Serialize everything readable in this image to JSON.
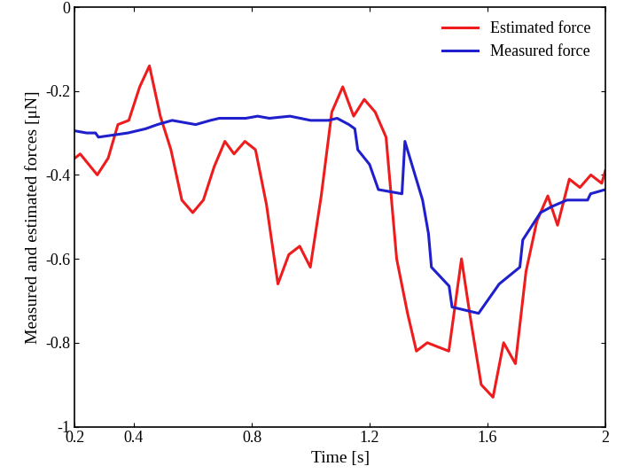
{
  "chart_data": {
    "type": "line",
    "x_label": "Time [s]",
    "y_label": "Measured and estimated forces [μN]",
    "xlim": [
      0.2,
      2.0
    ],
    "xticks": [
      0.2,
      0.4,
      0.8,
      1.2,
      1.6,
      2
    ],
    "ylim": [
      -1,
      0
    ],
    "yticks": [
      -1,
      -0.8,
      -0.6,
      -0.4,
      -0.2,
      0
    ],
    "legend": "upper right",
    "grid": false,
    "series": [
      {
        "name": "Estimated force",
        "color": "#ee1c1c",
        "line_style": "solid",
        "x": [
          0.2,
          0.218,
          0.276,
          0.313,
          0.346,
          0.383,
          0.42,
          0.453,
          0.49,
          0.526,
          0.563,
          0.6,
          0.636,
          0.673,
          0.709,
          0.74,
          0.777,
          0.813,
          0.85,
          0.889,
          0.926,
          0.963,
          0.999,
          1.036,
          1.072,
          1.109,
          1.146,
          1.182,
          1.219,
          1.256,
          1.292,
          1.329,
          1.359,
          1.396,
          1.432,
          1.469,
          1.512,
          1.542,
          1.579,
          1.619,
          1.655,
          1.695,
          1.731,
          1.768,
          1.805,
          1.838,
          1.878,
          1.914,
          1.951,
          1.988,
          2.0
        ],
        "values": [
          -0.36,
          -0.35,
          -0.4,
          -0.36,
          -0.28,
          -0.27,
          -0.19,
          -0.14,
          -0.26,
          -0.34,
          -0.46,
          -0.49,
          -0.46,
          -0.38,
          -0.32,
          -0.35,
          -0.32,
          -0.34,
          -0.47,
          -0.66,
          -0.59,
          -0.57,
          -0.62,
          -0.45,
          -0.25,
          -0.19,
          -0.26,
          -0.22,
          -0.25,
          -0.31,
          -0.6,
          -0.73,
          -0.82,
          -0.8,
          -0.81,
          -0.82,
          -0.6,
          -0.74,
          -0.9,
          -0.93,
          -0.8,
          -0.85,
          -0.63,
          -0.51,
          -0.45,
          -0.52,
          -0.41,
          -0.43,
          -0.4,
          -0.42,
          -0.39
        ]
      },
      {
        "name": "Measured force",
        "color": "#1f1fcc",
        "line_style": "solid",
        "x": [
          0.2,
          0.24,
          0.27,
          0.28,
          0.33,
          0.38,
          0.44,
          0.48,
          0.53,
          0.57,
          0.61,
          0.66,
          0.69,
          0.72,
          0.78,
          0.82,
          0.86,
          0.93,
          1.0,
          1.06,
          1.09,
          1.13,
          1.15,
          1.16,
          1.2,
          1.23,
          1.31,
          1.32,
          1.38,
          1.4,
          1.41,
          1.47,
          1.48,
          1.57,
          1.64,
          1.71,
          1.72,
          1.78,
          1.82,
          1.87,
          1.94,
          1.95,
          2.0
        ],
        "values": [
          -0.295,
          -0.3,
          -0.3,
          -0.31,
          -0.305,
          -0.3,
          -0.29,
          -0.28,
          -0.27,
          -0.275,
          -0.28,
          -0.27,
          -0.265,
          -0.265,
          -0.265,
          -0.26,
          -0.265,
          -0.26,
          -0.27,
          -0.27,
          -0.265,
          -0.28,
          -0.29,
          -0.34,
          -0.375,
          -0.435,
          -0.445,
          -0.32,
          -0.46,
          -0.54,
          -0.62,
          -0.665,
          -0.715,
          -0.73,
          -0.66,
          -0.62,
          -0.555,
          -0.49,
          -0.475,
          -0.46,
          -0.46,
          -0.445,
          -0.435
        ]
      }
    ]
  }
}
